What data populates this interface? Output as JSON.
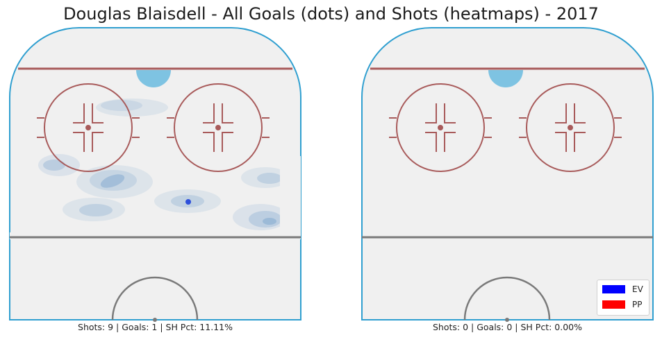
{
  "title": "Douglas Blaisdell - All Goals (dots) and Shots (heatmaps) - 2017",
  "colors": {
    "ice": "#f0f0f0",
    "boards": "#2f9fd0",
    "red_line": "#a85a5a",
    "center_line": "#7a7a7a",
    "crease": "#7ec3e2",
    "heat": "#5b8fc4",
    "goal_dot": "#2d4fdb",
    "ev": "#0000ff",
    "pp": "#ff0000"
  },
  "panels": [
    {
      "caption": "Shots: 9 | Goals: 1 | SH Pct: 11.11%",
      "shots": 9,
      "goals": 1,
      "sh_pct": "11.11%"
    },
    {
      "caption": "Shots: 0 | Goals: 0 | SH Pct: 0.00%",
      "shots": 0,
      "goals": 0,
      "sh_pct": "0.00%"
    }
  ],
  "legend": {
    "placement": "lower-right",
    "entries": [
      {
        "label": "EV",
        "color": "#0000ff"
      },
      {
        "label": "PP",
        "color": "#ff0000"
      }
    ]
  },
  "chart_data": {
    "type": "heatmap",
    "title": "Douglas Blaisdell - All Goals (dots) and Shots (heatmaps) - 2017",
    "series": [
      {
        "name": "EV",
        "color": "#0000ff"
      },
      {
        "name": "PP",
        "color": "#ff0000"
      }
    ],
    "panels": [
      {
        "shots": 9,
        "goals": 1,
        "sh_pct": 11.11
      },
      {
        "shots": 0,
        "goals": 0,
        "sh_pct": 0.0
      }
    ]
  }
}
